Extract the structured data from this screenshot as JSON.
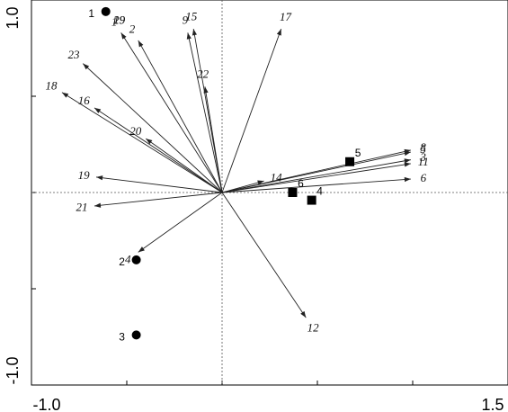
{
  "chart_data": {
    "type": "scatter",
    "subtype": "ordination biplot",
    "title": "",
    "xlabel": "",
    "ylabel": "",
    "xlim": [
      -1.0,
      1.5
    ],
    "ylim": [
      -1.0,
      1.0
    ],
    "x_tick_labels": [
      "-1.0",
      "1.5"
    ],
    "y_tick_labels": [
      "1.0",
      "-1.0"
    ],
    "grid": false,
    "reference_lines": "dashed lines at x = 0 and y = 0",
    "colors": {
      "arrow": "#222222",
      "marker": "#000000",
      "frame": "#000000"
    },
    "variables": [
      {
        "label": "1",
        "x": -0.53,
        "y": 0.83
      },
      {
        "label": "2",
        "x": -0.44,
        "y": 0.79
      },
      {
        "label": "3",
        "x": 0.99,
        "y": 0.17
      },
      {
        "label": "4",
        "x": -0.44,
        "y": -0.31
      },
      {
        "label": "5",
        "x": 0.99,
        "y": 0.21
      },
      {
        "label": "6",
        "x": 0.99,
        "y": 0.07
      },
      {
        "label": "8",
        "x": 0.99,
        "y": 0.22
      },
      {
        "label": "9",
        "x": -0.18,
        "y": 0.83
      },
      {
        "label": "11",
        "x": 0.99,
        "y": 0.15
      },
      {
        "label": "12",
        "x": 0.44,
        "y": -0.65
      },
      {
        "label": "14",
        "x": 0.22,
        "y": 0.06
      },
      {
        "label": "15",
        "x": -0.15,
        "y": 0.85
      },
      {
        "label": "16",
        "x": -0.67,
        "y": 0.44
      },
      {
        "label": "17",
        "x": 0.31,
        "y": 0.85
      },
      {
        "label": "18",
        "x": -0.84,
        "y": 0.52
      },
      {
        "label": "19",
        "x": -0.66,
        "y": 0.08
      },
      {
        "label": "20",
        "x": -0.4,
        "y": 0.28
      },
      {
        "label": "21",
        "x": -0.67,
        "y": -0.07
      },
      {
        "label": "22",
        "x": -0.09,
        "y": 0.55
      },
      {
        "label": "23",
        "x": -0.73,
        "y": 0.67
      }
    ],
    "samples": [
      {
        "label": "1",
        "x": -0.61,
        "y": 0.94,
        "marker": "circle"
      },
      {
        "label": "2",
        "x": -0.45,
        "y": -0.35,
        "marker": "circle"
      },
      {
        "label": "3",
        "x": -0.45,
        "y": -0.74,
        "marker": "circle"
      },
      {
        "label": "4",
        "x": 0.47,
        "y": -0.04,
        "marker": "square"
      },
      {
        "label": "5",
        "x": 0.67,
        "y": 0.16,
        "marker": "square"
      },
      {
        "label": "6",
        "x": 0.37,
        "y": 0.0,
        "marker": "square"
      }
    ],
    "overlapping_labels": [
      "29",
      "19"
    ]
  }
}
